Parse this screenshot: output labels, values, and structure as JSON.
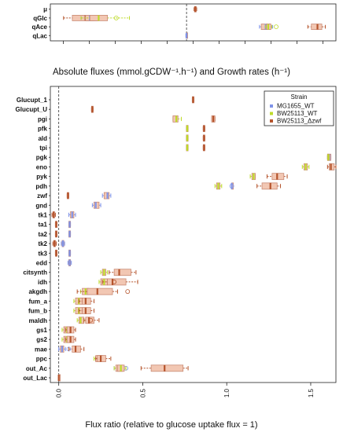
{
  "colors": {
    "MG1655_WT": "#7f93e8",
    "BW25113_WT": "#bedb2a",
    "BW25113_dzwf": "#b5542c",
    "box_fill": "#f2c7b3",
    "box_stroke": "#c98a74"
  },
  "chart_data": [
    {
      "type": "boxplot",
      "title": "Absolute fluxes (mmol.gCDW⁻¹.h⁻¹) and Growth rates (h⁻¹)",
      "categories": [
        "μ",
        "qGlc",
        "qAce",
        "qLac"
      ],
      "zero_line": true,
      "xlim": [
        -15.5,
        17
      ],
      "boxes": [
        {
          "cat": "μ",
          "strain": "BW25113_Δzwf",
          "q1": 0.9,
          "med": 1.0,
          "q3": 1.1,
          "lo": 0.85,
          "hi": 1.15
        },
        {
          "cat": "qGlc",
          "strain": "BW25113_Δzwf",
          "q1": -13,
          "med": -11.5,
          "q3": -10.5,
          "lo": -14,
          "hi": -10
        },
        {
          "cat": "qGlc",
          "strain": "MG1655_WT",
          "q1": -11.5,
          "med": -11,
          "q3": -10,
          "lo": -12,
          "hi": -9.5
        },
        {
          "cat": "qGlc",
          "strain": "BW25113_WT",
          "q1": -11,
          "med": -10,
          "q3": -9,
          "lo": -12,
          "hi": -6.5,
          "out": [
            -8
          ]
        },
        {
          "cat": "qAce",
          "strain": "MG1655_WT",
          "q1": 8.5,
          "med": 9,
          "q3": 9.5,
          "lo": 8.3,
          "hi": 9.8
        },
        {
          "cat": "qAce",
          "strain": "BW25113_WT",
          "q1": 9.1,
          "med": 9.3,
          "q3": 9.6,
          "lo": 9.0,
          "hi": 9.7,
          "out": [
            10.2
          ]
        },
        {
          "cat": "qAce",
          "strain": "BW25113_Δzwf",
          "q1": 14.2,
          "med": 14.9,
          "q3": 15.4,
          "lo": 13.8,
          "hi": 15.8
        },
        {
          "cat": "qLac",
          "strain": "MG1655_WT",
          "q1": -0.05,
          "med": 0,
          "q3": 0.05,
          "lo": -0.08,
          "hi": 0.08
        }
      ]
    },
    {
      "type": "boxplot",
      "xlabel": "Flux ratio (relative to glucose uptake flux = 1)",
      "xlim": [
        -0.05,
        1.65
      ],
      "xticks": [
        "0.0",
        "0.5",
        "1.0",
        "1.5"
      ],
      "xtick_values": [
        0,
        0.5,
        1.0,
        1.5
      ],
      "zero_line": true,
      "legend_title": "Strain",
      "legend": [
        "MG1655_WT",
        "BW25113_WT",
        "BW25113_Δzwf"
      ],
      "legend_position": "top-right",
      "categories": [
        "Glucupt_1",
        "Glucupt_U",
        "pgi",
        "pfk",
        "ald",
        "tpi",
        "pgk",
        "eno",
        "pyk",
        "pdh",
        "zwf",
        "gnd",
        "tk1",
        "ta1",
        "ta2",
        "tk2",
        "tk3",
        "edd",
        "citsynth",
        "idh",
        "akgdh",
        "fum_a",
        "fum_b",
        "maldh",
        "gs1",
        "gs2",
        "mae",
        "ppc",
        "out_Ac",
        "out_Lac"
      ],
      "boxes": [
        {
          "cat": "Glucupt_1",
          "strain": "BW25113_Δzwf",
          "q1": 0.795,
          "med": 0.8,
          "q3": 0.805,
          "lo": 0.795,
          "hi": 0.805
        },
        {
          "cat": "Glucupt_U",
          "strain": "BW25113_Δzwf",
          "q1": 0.195,
          "med": 0.2,
          "q3": 0.205,
          "lo": 0.195,
          "hi": 0.205
        },
        {
          "cat": "pgi",
          "strain": "BW25113_WT",
          "q1": 0.68,
          "med": 0.7,
          "q3": 0.71,
          "lo": 0.68,
          "hi": 0.73
        },
        {
          "cat": "pgi",
          "strain": "BW25113_Δzwf",
          "q1": 0.91,
          "med": 0.92,
          "q3": 0.93,
          "lo": 0.91,
          "hi": 0.93
        },
        {
          "cat": "pfk",
          "strain": "BW25113_WT",
          "q1": 0.76,
          "med": 0.765,
          "q3": 0.77,
          "lo": 0.76,
          "hi": 0.77
        },
        {
          "cat": "pfk",
          "strain": "BW25113_Δzwf",
          "q1": 0.86,
          "med": 0.865,
          "q3": 0.87,
          "lo": 0.86,
          "hi": 0.87
        },
        {
          "cat": "ald",
          "strain": "BW25113_WT",
          "q1": 0.76,
          "med": 0.765,
          "q3": 0.77,
          "lo": 0.76,
          "hi": 0.77
        },
        {
          "cat": "ald",
          "strain": "BW25113_Δzwf",
          "q1": 0.86,
          "med": 0.865,
          "q3": 0.87,
          "lo": 0.86,
          "hi": 0.87
        },
        {
          "cat": "tpi",
          "strain": "BW25113_WT",
          "q1": 0.76,
          "med": 0.765,
          "q3": 0.77,
          "lo": 0.76,
          "hi": 0.77
        },
        {
          "cat": "tpi",
          "strain": "BW25113_Δzwf",
          "q1": 0.86,
          "med": 0.865,
          "q3": 0.87,
          "lo": 0.86,
          "hi": 0.87
        },
        {
          "cat": "pgk",
          "strain": "MG1655_WT",
          "q1": 1.6,
          "med": 1.61,
          "q3": 1.62,
          "lo": 1.6,
          "hi": 1.62
        },
        {
          "cat": "pgk",
          "strain": "BW25113_WT",
          "q1": 1.6,
          "med": 1.605,
          "q3": 1.61,
          "lo": 1.6,
          "hi": 1.61
        },
        {
          "cat": "eno",
          "strain": "BW25113_WT",
          "q1": 1.46,
          "med": 1.47,
          "q3": 1.48,
          "lo": 1.45,
          "hi": 1.49
        },
        {
          "cat": "eno",
          "strain": "BW25113_Δzwf",
          "q1": 1.61,
          "med": 1.62,
          "q3": 1.64,
          "lo": 1.6,
          "hi": 1.65
        },
        {
          "cat": "pyk",
          "strain": "BW25113_WT",
          "q1": 1.15,
          "med": 1.16,
          "q3": 1.17,
          "lo": 1.14,
          "hi": 1.17
        },
        {
          "cat": "pyk",
          "strain": "BW25113_Δzwf",
          "q1": 1.27,
          "med": 1.3,
          "q3": 1.34,
          "lo": 1.24,
          "hi": 1.36
        },
        {
          "cat": "pdh",
          "strain": "BW25113_WT",
          "q1": 0.94,
          "med": 0.95,
          "q3": 0.96,
          "lo": 0.93,
          "hi": 0.97
        },
        {
          "cat": "pdh",
          "strain": "MG1655_WT",
          "q1": 1.03,
          "med": 1.03,
          "q3": 1.03,
          "lo": 1.03,
          "hi": 1.03,
          "out": [
            1.03
          ]
        },
        {
          "cat": "pdh",
          "strain": "BW25113_Δzwf",
          "q1": 1.21,
          "med": 1.26,
          "q3": 1.3,
          "lo": 1.18,
          "hi": 1.32
        },
        {
          "cat": "zwf",
          "strain": "BW25113_Δzwf",
          "q1": 0.05,
          "med": 0.055,
          "q3": 0.06,
          "lo": 0.05,
          "hi": 0.06
        },
        {
          "cat": "zwf",
          "strain": "MG1655_WT",
          "q1": 0.27,
          "med": 0.29,
          "q3": 0.3,
          "lo": 0.26,
          "hi": 0.31
        },
        {
          "cat": "gnd",
          "strain": "MG1655_WT",
          "q1": 0.21,
          "med": 0.22,
          "q3": 0.24,
          "lo": 0.2,
          "hi": 0.25
        },
        {
          "cat": "tk1",
          "strain": "BW25113_Δzwf",
          "q1": -0.035,
          "med": -0.03,
          "q3": -0.025,
          "lo": -0.04,
          "hi": -0.02
        },
        {
          "cat": "tk1",
          "strain": "MG1655_WT",
          "q1": 0.07,
          "med": 0.08,
          "q3": 0.09,
          "lo": 0.06,
          "hi": 0.1
        },
        {
          "cat": "ta1",
          "strain": "BW25113_Δzwf",
          "q1": -0.02,
          "med": -0.015,
          "q3": -0.01,
          "lo": -0.02,
          "hi": -0.01
        },
        {
          "cat": "ta1",
          "strain": "MG1655_WT",
          "q1": 0.06,
          "med": 0.065,
          "q3": 0.07,
          "lo": 0.06,
          "hi": 0.07
        },
        {
          "cat": "ta2",
          "strain": "BW25113_Δzwf",
          "q1": -0.02,
          "med": -0.015,
          "q3": -0.01,
          "lo": -0.02,
          "hi": -0.01
        },
        {
          "cat": "ta2",
          "strain": "MG1655_WT",
          "q1": 0.06,
          "med": 0.065,
          "q3": 0.07,
          "lo": 0.06,
          "hi": 0.07
        },
        {
          "cat": "tk2",
          "strain": "BW25113_Δzwf",
          "q1": -0.03,
          "med": -0.025,
          "q3": -0.02,
          "lo": -0.035,
          "hi": -0.015
        },
        {
          "cat": "tk2",
          "strain": "MG1655_WT",
          "q1": 0.02,
          "med": 0.025,
          "q3": 0.03,
          "lo": 0.015,
          "hi": 0.035
        },
        {
          "cat": "tk3",
          "strain": "BW25113_Δzwf",
          "q1": -0.02,
          "med": -0.015,
          "q3": -0.01,
          "lo": -0.02,
          "hi": -0.01
        },
        {
          "cat": "tk3",
          "strain": "MG1655_WT",
          "q1": 0.06,
          "med": 0.065,
          "q3": 0.07,
          "lo": 0.06,
          "hi": 0.07
        },
        {
          "cat": "edd",
          "strain": "MG1655_WT",
          "q1": 0.06,
          "med": 0.065,
          "q3": 0.07,
          "lo": 0.055,
          "hi": 0.075
        },
        {
          "cat": "citsynth",
          "strain": "BW25113_WT",
          "q1": 0.26,
          "med": 0.27,
          "q3": 0.28,
          "lo": 0.25,
          "hi": 0.29
        },
        {
          "cat": "citsynth",
          "strain": "BW25113_Δzwf",
          "q1": 0.33,
          "med": 0.36,
          "q3": 0.43,
          "lo": 0.3,
          "hi": 0.46
        },
        {
          "cat": "idh",
          "strain": "BW25113_WT",
          "q1": 0.25,
          "med": 0.27,
          "q3": 0.29,
          "lo": 0.24,
          "hi": 0.3
        },
        {
          "cat": "idh",
          "strain": "BW25113_Δzwf",
          "q1": 0.29,
          "med": 0.32,
          "q3": 0.4,
          "lo": 0.26,
          "hi": 0.47,
          "out": [
            0.33
          ]
        },
        {
          "cat": "akgdh",
          "strain": "BW25113_WT",
          "q1": 0.14,
          "med": 0.16,
          "q3": 0.18,
          "lo": 0.13,
          "hi": 0.19
        },
        {
          "cat": "akgdh",
          "strain": "BW25113_Δzwf",
          "q1": 0.17,
          "med": 0.23,
          "q3": 0.32,
          "lo": 0.11,
          "hi": 0.35,
          "out": [
            0.41
          ]
        },
        {
          "cat": "fum_a",
          "strain": "BW25113_WT",
          "q1": 0.1,
          "med": 0.12,
          "q3": 0.14,
          "lo": 0.09,
          "hi": 0.15
        },
        {
          "cat": "fum_a",
          "strain": "BW25113_Δzwf",
          "q1": 0.14,
          "med": 0.16,
          "q3": 0.19,
          "lo": 0.12,
          "hi": 0.21
        },
        {
          "cat": "fum_b",
          "strain": "BW25113_WT",
          "q1": 0.1,
          "med": 0.12,
          "q3": 0.14,
          "lo": 0.09,
          "hi": 0.15
        },
        {
          "cat": "fum_b",
          "strain": "BW25113_Δzwf",
          "q1": 0.14,
          "med": 0.16,
          "q3": 0.19,
          "lo": 0.12,
          "hi": 0.21
        },
        {
          "cat": "maldh",
          "strain": "BW25113_WT",
          "q1": 0.12,
          "med": 0.13,
          "q3": 0.15,
          "lo": 0.11,
          "hi": 0.16
        },
        {
          "cat": "maldh",
          "strain": "BW25113_Δzwf",
          "q1": 0.16,
          "med": 0.18,
          "q3": 0.21,
          "lo": 0.15,
          "hi": 0.24,
          "out": [
            0.19
          ]
        },
        {
          "cat": "gs1",
          "strain": "BW25113_WT",
          "q1": 0.03,
          "med": 0.05,
          "q3": 0.07,
          "lo": 0.02,
          "hi": 0.08
        },
        {
          "cat": "gs1",
          "strain": "BW25113_Δzwf",
          "q1": 0.05,
          "med": 0.07,
          "q3": 0.09,
          "lo": 0.04,
          "hi": 0.1
        },
        {
          "cat": "gs2",
          "strain": "BW25113_WT",
          "q1": 0.03,
          "med": 0.05,
          "q3": 0.07,
          "lo": 0.02,
          "hi": 0.08
        },
        {
          "cat": "gs2",
          "strain": "BW25113_Δzwf",
          "q1": 0.05,
          "med": 0.07,
          "q3": 0.09,
          "lo": 0.04,
          "hi": 0.1
        },
        {
          "cat": "mae",
          "strain": "MG1655_WT",
          "q1": 0.01,
          "med": 0.02,
          "q3": 0.03,
          "lo": 0.0,
          "hi": 0.04,
          "out": [
            0.06
          ]
        },
        {
          "cat": "mae",
          "strain": "BW25113_Δzwf",
          "q1": 0.08,
          "med": 0.1,
          "q3": 0.13,
          "lo": 0.06,
          "hi": 0.15
        },
        {
          "cat": "ppc",
          "strain": "BW25113_WT",
          "q1": 0.22,
          "med": 0.24,
          "q3": 0.26,
          "lo": 0.21,
          "hi": 0.27
        },
        {
          "cat": "ppc",
          "strain": "BW25113_Δzwf",
          "q1": 0.23,
          "med": 0.25,
          "q3": 0.28,
          "lo": 0.22,
          "hi": 0.31
        },
        {
          "cat": "out_Ac",
          "strain": "MG1655_WT",
          "q1": 0.34,
          "med": 0.36,
          "q3": 0.38,
          "lo": 0.33,
          "hi": 0.39,
          "out": [
            0.4
          ]
        },
        {
          "cat": "out_Ac",
          "strain": "BW25113_WT",
          "q1": 0.35,
          "med": 0.37,
          "q3": 0.39,
          "lo": 0.33,
          "hi": 0.4
        },
        {
          "cat": "out_Ac",
          "strain": "BW25113_Δzwf",
          "q1": 0.55,
          "med": 0.63,
          "q3": 0.74,
          "lo": 0.49,
          "hi": 0.77
        },
        {
          "cat": "out_Lac",
          "strain": "BW25113_Δzwf",
          "q1": 0.0,
          "med": 0.0,
          "q3": 0.0,
          "lo": 0.0,
          "hi": 0.0
        }
      ]
    }
  ]
}
